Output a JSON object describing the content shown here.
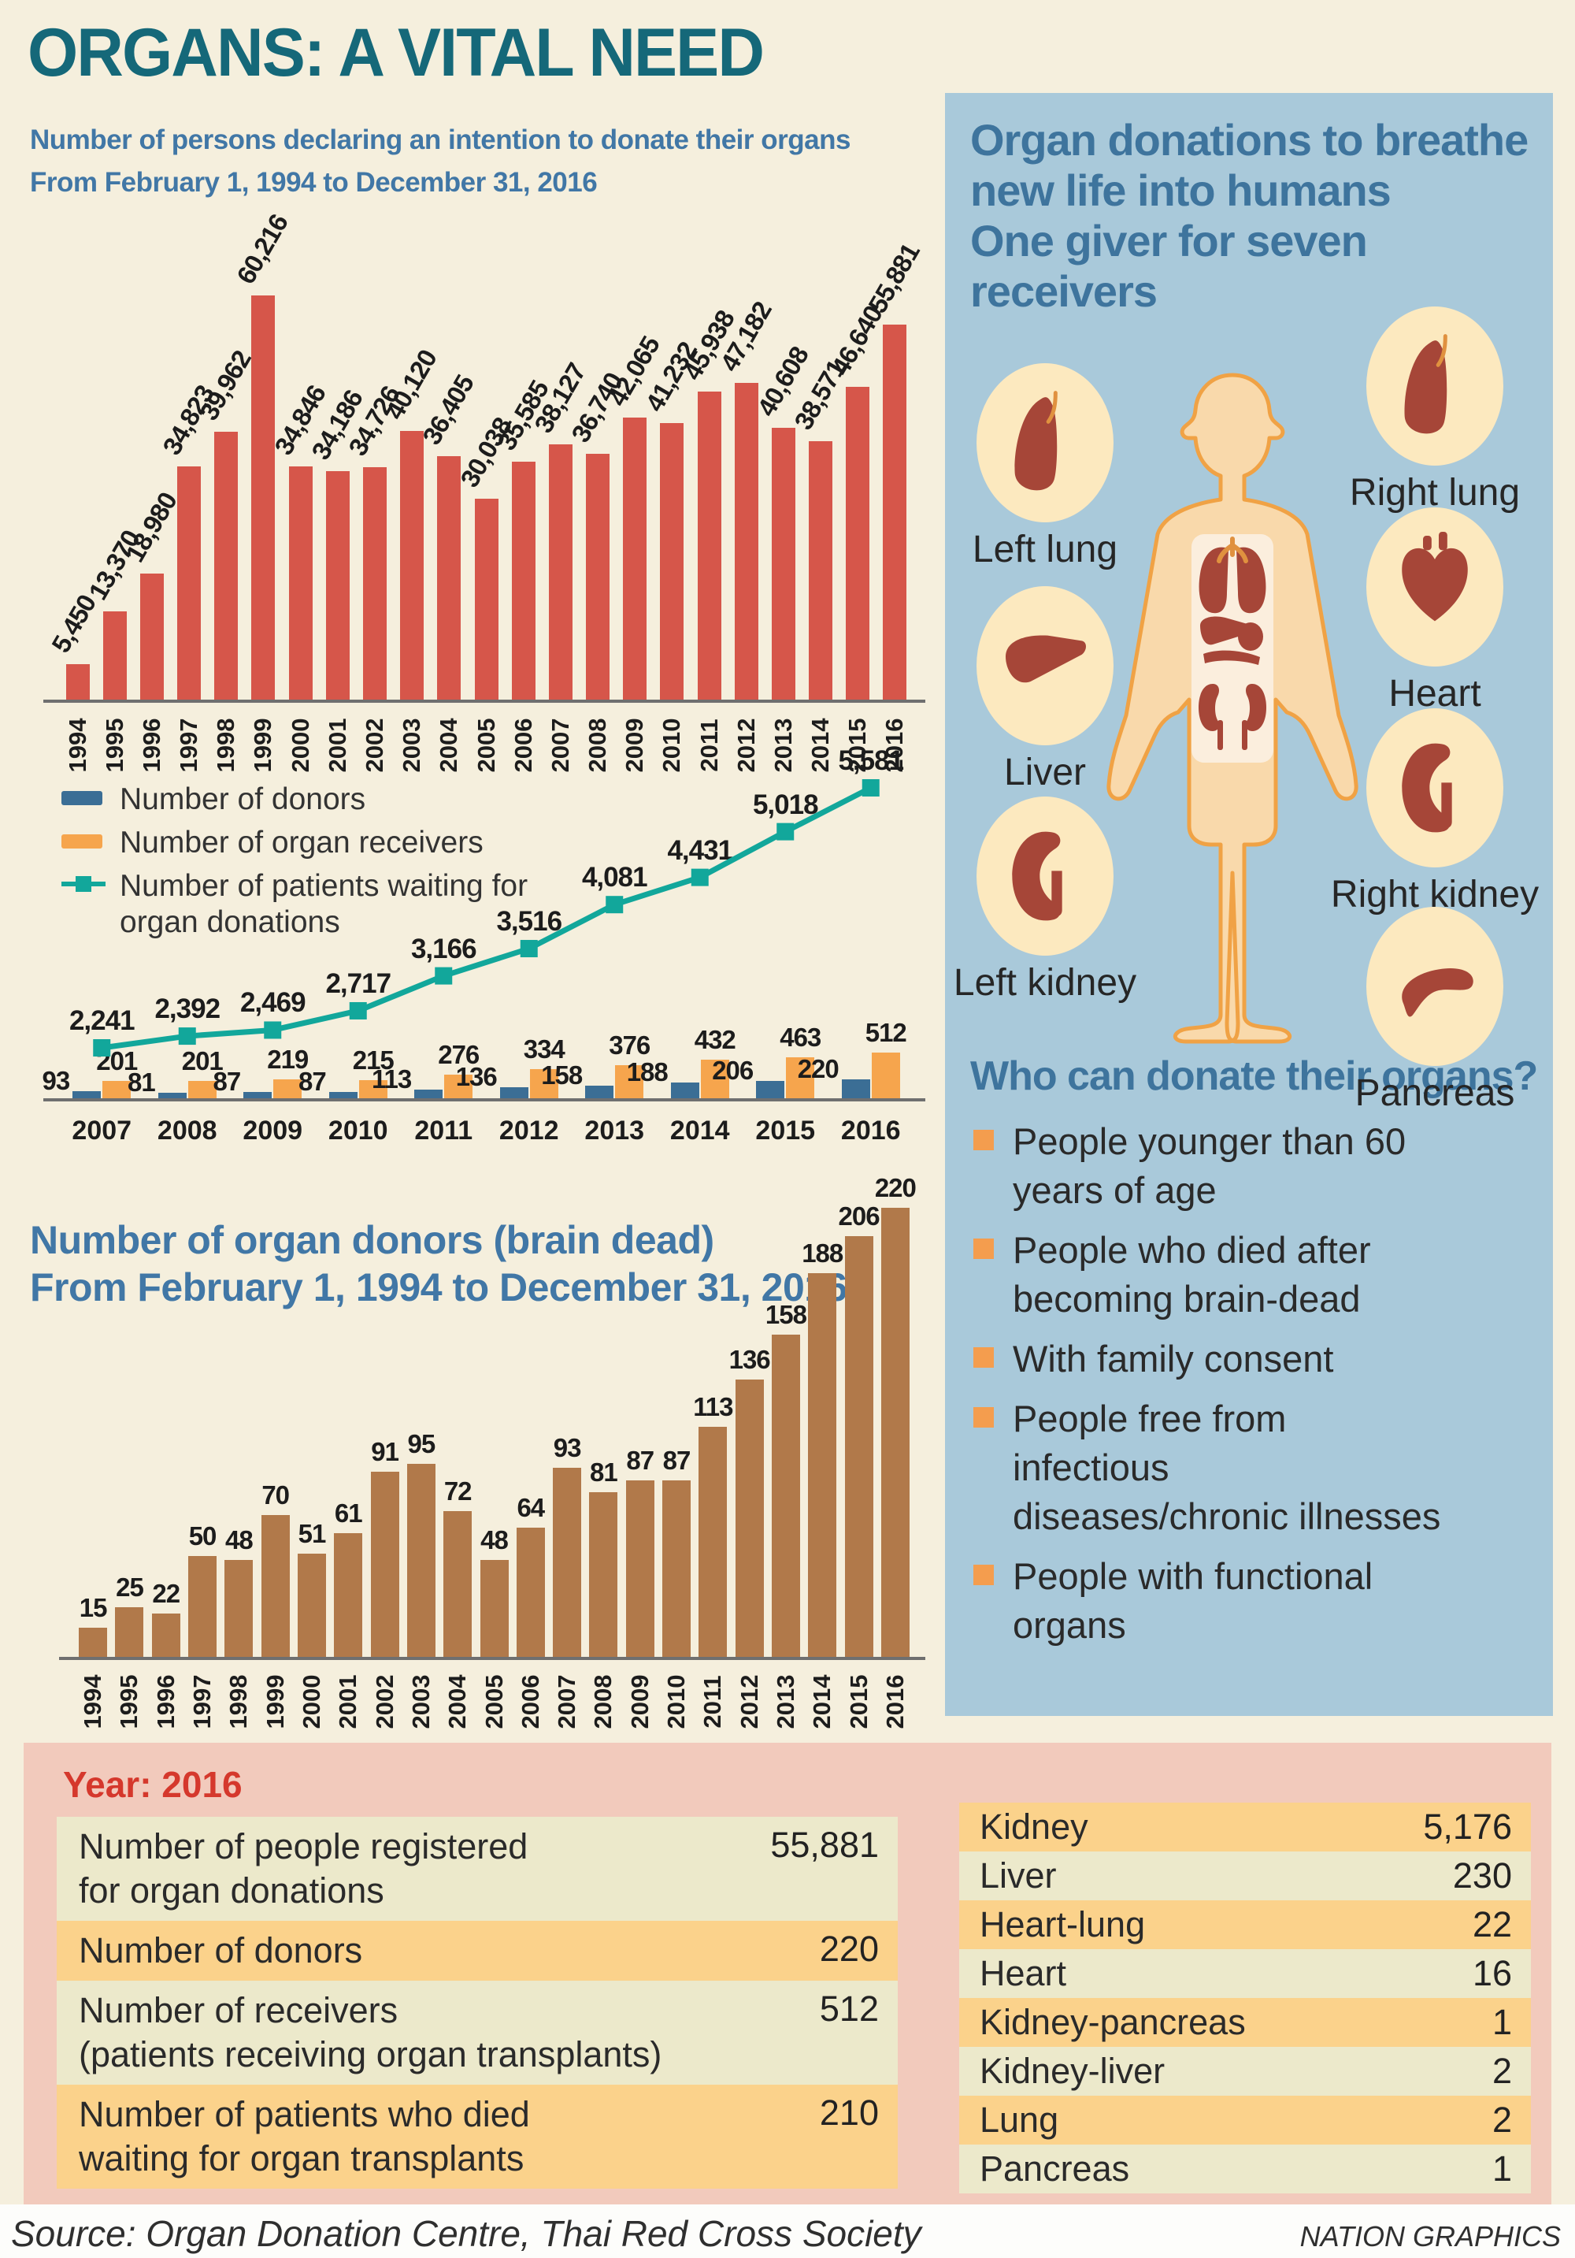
{
  "page": {
    "title": "ORGANS: A VITAL NEED",
    "source": "Source: Organ Donation Centre, Thai Red Cross Society",
    "credit": "NATION GRAPHICS"
  },
  "colors": {
    "background": "#f5efdd",
    "title_teal": "#156879",
    "subtitle_blue": "#4177a6",
    "red_bar": "#d6564a",
    "blue_bar": "#3b6e95",
    "orange_bar": "#f6a54d",
    "teal_line": "#12a79b",
    "brown_bar": "#b1794a",
    "panel_blue": "#a9c9da",
    "panel_heading_blue": "#3e749d",
    "bullet_orange": "#f49d4e",
    "pink_panel": "#f2cabc",
    "row_cream": "#ece9cb",
    "row_orange": "#fbd28b",
    "red_text": "#d5382c",
    "organ_red": "#a64638",
    "circle_cream": "#fce9bf",
    "body_skin": "#f9d9ab",
    "body_outline": "#f0a245"
  },
  "chart_data": [
    {
      "id": "registrations",
      "type": "bar",
      "title": "Number of persons declaring an intention to donate their organs",
      "subtitle": "From February 1, 1994 to December 31, 2016",
      "categories": [
        "1994",
        "1995",
        "1996",
        "1997",
        "1998",
        "1999",
        "2000",
        "2001",
        "2002",
        "2003",
        "2004",
        "2005",
        "2006",
        "2007",
        "2008",
        "2009",
        "2010",
        "2011",
        "2012",
        "2013",
        "2014",
        "2015",
        "2016"
      ],
      "values": [
        5450,
        13370,
        18980,
        34823,
        39962,
        60216,
        34846,
        34186,
        34726,
        40120,
        36405,
        30038,
        35585,
        38127,
        36740,
        42065,
        41232,
        45938,
        47182,
        40608,
        38571,
        46640,
        55881
      ],
      "bar_color": "#d6564a",
      "ylim": [
        0,
        62000
      ],
      "grid": false
    },
    {
      "id": "donors-receivers-waiting",
      "type": "bar+line",
      "categories": [
        "2007",
        "2008",
        "2009",
        "2010",
        "2011",
        "2012",
        "2013",
        "2014",
        "2015",
        "2016"
      ],
      "series": [
        {
          "name": "Number of donors",
          "type": "bar",
          "color": "#3b6e95",
          "values": [
            93,
            81,
            87,
            87,
            113,
            136,
            158,
            188,
            206,
            220
          ]
        },
        {
          "name": "Number of organ receivers",
          "type": "bar",
          "color": "#f6a54d",
          "values": [
            201,
            201,
            219,
            215,
            276,
            334,
            376,
            432,
            463,
            512
          ]
        },
        {
          "name": "Number of patients waiting for organ donations",
          "type": "line",
          "color": "#12a79b",
          "values": [
            2241,
            2392,
            2469,
            2717,
            3166,
            3516,
            4081,
            4431,
            5018,
            5581
          ]
        }
      ],
      "legend_position": "top-left",
      "grid": false
    },
    {
      "id": "brain-dead-donors",
      "type": "bar",
      "title": "Number of organ donors (brain dead)",
      "subtitle": "From February 1, 1994 to December 31, 2016",
      "categories": [
        "1994",
        "1995",
        "1996",
        "1997",
        "1998",
        "1999",
        "2000",
        "2001",
        "2002",
        "2003",
        "2004",
        "2005",
        "2006",
        "2007",
        "2008",
        "2009",
        "2010",
        "2011",
        "2012",
        "2013",
        "2014",
        "2015",
        "2016"
      ],
      "values": [
        15,
        25,
        22,
        50,
        48,
        70,
        51,
        61,
        91,
        95,
        72,
        48,
        64,
        93,
        81,
        87,
        87,
        113,
        136,
        158,
        188,
        206,
        220
      ],
      "bar_color": "#b1794a",
      "ylim": [
        0,
        230
      ],
      "grid": false
    }
  ],
  "right_panel": {
    "heading": "Organ donations to breathe\nnew life into humans\nOne giver for seven\nreceivers",
    "organs_left": [
      "Left lung",
      "Liver",
      "Left kidney"
    ],
    "organs_right": [
      "Right lung",
      "Heart",
      "Right kidney",
      "Pancreas"
    ],
    "who_heading": "Who can donate their organs?",
    "who_items": [
      "People younger than 60\nyears of age",
      "People who died after\nbecoming brain-dead",
      "With family consent",
      "People free from\ninfectious\ndiseases/chronic illnesses",
      "People with functional\norgans"
    ]
  },
  "summary": {
    "year_label": "Year: 2016",
    "rows": [
      {
        "label": "Number of people registered\nfor organ donations",
        "value": "55,881"
      },
      {
        "label": "Number of donors",
        "value": "220"
      },
      {
        "label": "Number of receivers\n(patients receiving organ transplants)",
        "value": "512"
      },
      {
        "label": "Number of patients who died\nwaiting for organ transplants",
        "value": "210"
      }
    ],
    "organ_rows": [
      {
        "label": "Kidney",
        "value": "5,176"
      },
      {
        "label": "Liver",
        "value": "230"
      },
      {
        "label": "Heart-lung",
        "value": "22"
      },
      {
        "label": "Heart",
        "value": "16"
      },
      {
        "label": "Kidney-pancreas",
        "value": "1"
      },
      {
        "label": "Kidney-liver",
        "value": "2"
      },
      {
        "label": "Lung",
        "value": "2"
      },
      {
        "label": "Pancreas",
        "value": "1"
      }
    ]
  }
}
